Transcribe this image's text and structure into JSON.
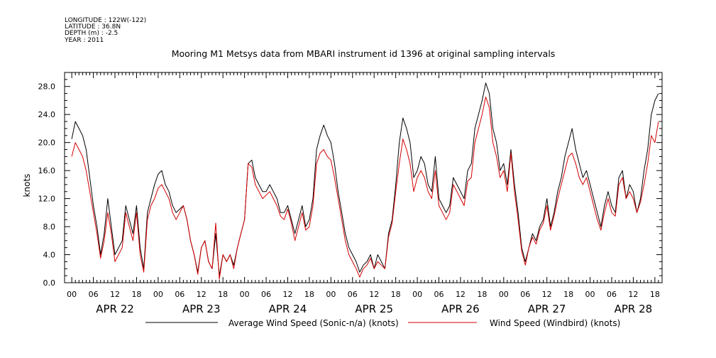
{
  "metadata": {
    "longitude": "LONGITUDE : 122W(-122)",
    "latitude": "LATITUDE : 36.8N",
    "depth": "DEPTH (m) : -2.5",
    "year": "YEAR : 2011"
  },
  "chart_data": {
    "type": "line",
    "title": "Mooring M1 Metsys data from MBARI instrument id 1396 at original sampling intervals",
    "xlabel": "",
    "ylabel": "knots",
    "xlim": [
      -2,
      164
    ],
    "ylim": [
      0,
      30
    ],
    "grid": false,
    "legend_position": "bottom",
    "x_unit": "hours after 2011-04-22 00:00",
    "y_ticks": [
      "0.0",
      "4.0",
      "8.0",
      "12.0",
      "16.0",
      "20.0",
      "24.0",
      "28.0"
    ],
    "hour_ticks": [
      "00",
      "06",
      "12",
      "18"
    ],
    "day_labels": [
      "APR 22",
      "APR 23",
      "APR 24",
      "APR 25",
      "APR 26",
      "APR 27",
      "APR 28"
    ],
    "series": [
      {
        "name": "Average Wind Speed (Sonic-n/a) (knots)",
        "color": "#000000",
        "x": [
          0,
          1,
          2,
          3,
          4,
          5,
          6,
          7,
          8,
          9,
          10,
          11,
          12,
          13,
          14,
          15,
          16,
          17,
          18,
          19,
          20,
          21,
          22,
          23,
          24,
          25,
          26,
          27,
          28,
          29,
          30,
          31,
          32,
          33,
          34,
          35,
          36,
          37,
          38,
          39,
          40,
          41,
          42,
          43,
          44,
          45,
          46,
          47,
          48,
          49,
          50,
          51,
          52,
          53,
          54,
          55,
          56,
          57,
          58,
          59,
          60,
          61,
          62,
          63,
          64,
          65,
          66,
          67,
          68,
          69,
          70,
          71,
          72,
          73,
          74,
          75,
          76,
          77,
          78,
          79,
          80,
          81,
          82,
          83,
          84,
          85,
          86,
          87,
          88,
          89,
          90,
          91,
          92,
          93,
          94,
          95,
          96,
          97,
          98,
          99,
          100,
          101,
          102,
          103,
          104,
          105,
          106,
          107,
          108,
          109,
          110,
          111,
          112,
          113,
          114,
          115,
          116,
          117,
          118,
          119,
          120,
          121,
          122,
          123,
          124,
          125,
          126,
          127,
          128,
          129,
          130,
          131,
          132,
          133,
          134,
          135,
          136,
          137,
          138,
          139,
          140,
          141,
          142,
          143,
          144,
          145,
          146,
          147,
          148,
          149,
          150,
          151,
          152,
          153,
          154,
          155,
          156,
          157,
          158,
          159,
          160,
          161,
          162,
          163
        ],
        "values": [
          20.5,
          23,
          22,
          21,
          19,
          15,
          11,
          8,
          4,
          7,
          12,
          8,
          4,
          5,
          6,
          11,
          9,
          7,
          11,
          5,
          2,
          10,
          12,
          14,
          15.5,
          16,
          14,
          13,
          11,
          10,
          10.5,
          11,
          9,
          6,
          4,
          1.5,
          5,
          6,
          3,
          2,
          7,
          1,
          4,
          3,
          4,
          2.5,
          5,
          7,
          9,
          17,
          17.5,
          15,
          14,
          13,
          13,
          14,
          13,
          12,
          10,
          10,
          11,
          9,
          7,
          9,
          11,
          8,
          9,
          12,
          19,
          21,
          22.5,
          21,
          20,
          17,
          13,
          10,
          7,
          5,
          4,
          3,
          1.5,
          2.5,
          3,
          4,
          2,
          4,
          3,
          2,
          7,
          9,
          14,
          20,
          23.5,
          22,
          20,
          15,
          16,
          18,
          17,
          14,
          13,
          18,
          12,
          11,
          10,
          11,
          15,
          14,
          13,
          12,
          16,
          17,
          22,
          24,
          26,
          28.5,
          27,
          22,
          20,
          16,
          17,
          14,
          19,
          14,
          10,
          5,
          3,
          5,
          7,
          6,
          8,
          9,
          12,
          8,
          10,
          13,
          15,
          18,
          20,
          22,
          19,
          17,
          15,
          16,
          14,
          12,
          10,
          8,
          11,
          13,
          11,
          10,
          15,
          16,
          12,
          14,
          13,
          10,
          12,
          16,
          19,
          24,
          26,
          27
        ]
      },
      {
        "name": "Wind Speed (Windbird) (knots)",
        "color": "#d40000",
        "x": [
          0,
          1,
          2,
          3,
          4,
          5,
          6,
          7,
          8,
          9,
          10,
          11,
          12,
          13,
          14,
          15,
          16,
          17,
          18,
          19,
          20,
          21,
          22,
          23,
          24,
          25,
          26,
          27,
          28,
          29,
          30,
          31,
          32,
          33,
          34,
          35,
          36,
          37,
          38,
          39,
          40,
          41,
          42,
          43,
          44,
          45,
          46,
          47,
          48,
          49,
          50,
          51,
          52,
          53,
          54,
          55,
          56,
          57,
          58,
          59,
          60,
          61,
          62,
          63,
          64,
          65,
          66,
          67,
          68,
          69,
          70,
          71,
          72,
          73,
          74,
          75,
          76,
          77,
          78,
          79,
          80,
          81,
          82,
          83,
          84,
          85,
          86,
          87,
          88,
          89,
          90,
          91,
          92,
          93,
          94,
          95,
          96,
          97,
          98,
          99,
          100,
          101,
          102,
          103,
          104,
          105,
          106,
          107,
          108,
          109,
          110,
          111,
          112,
          113,
          114,
          115,
          116,
          117,
          118,
          119,
          120,
          121,
          122,
          123,
          124,
          125,
          126,
          127,
          128,
          129,
          130,
          131,
          132,
          133,
          134,
          135,
          136,
          137,
          138,
          139,
          140,
          141,
          142,
          143,
          144,
          145,
          146,
          147,
          148,
          149,
          150,
          151,
          152,
          153,
          154,
          155,
          156,
          157,
          158,
          159,
          160,
          161,
          162,
          163
        ],
        "values": [
          18,
          20,
          19,
          18,
          16,
          13,
          10,
          7,
          3.5,
          6,
          10,
          7,
          3,
          4,
          5,
          10,
          8,
          6,
          10,
          4,
          1.5,
          9,
          11,
          12,
          13.5,
          14,
          13,
          12,
          10,
          9,
          10,
          11,
          9,
          6,
          4,
          1.2,
          5,
          6,
          3,
          2,
          8.5,
          0.5,
          4,
          3,
          4,
          2,
          5,
          7,
          9,
          17,
          16.5,
          14,
          13,
          12,
          12.5,
          13,
          12,
          11,
          9.5,
          9,
          10.5,
          8.5,
          6,
          8,
          10,
          7.5,
          8,
          11,
          17,
          18.5,
          19,
          18,
          17.5,
          15,
          12,
          9,
          6,
          4,
          3,
          2,
          0.8,
          2,
          2.5,
          3.5,
          2,
          3,
          2.5,
          2,
          6.5,
          8.5,
          13,
          17,
          20.5,
          19,
          17,
          13,
          15,
          16,
          15,
          13,
          12,
          16,
          11,
          10,
          9,
          10,
          14,
          13,
          12,
          11,
          14.5,
          15,
          20,
          22,
          24,
          26.5,
          25,
          20,
          18,
          15,
          16,
          13,
          18.5,
          13,
          9,
          4.5,
          2.5,
          5,
          6.5,
          5.5,
          7.5,
          8.5,
          11,
          7.5,
          9.5,
          12,
          14,
          16,
          18,
          18.5,
          17,
          15,
          14,
          15,
          13,
          11,
          9,
          7.5,
          10,
          12,
          10,
          9.5,
          14,
          15,
          12,
          13,
          12,
          10,
          11.5,
          14,
          17,
          21,
          20,
          23
        ]
      }
    ]
  }
}
